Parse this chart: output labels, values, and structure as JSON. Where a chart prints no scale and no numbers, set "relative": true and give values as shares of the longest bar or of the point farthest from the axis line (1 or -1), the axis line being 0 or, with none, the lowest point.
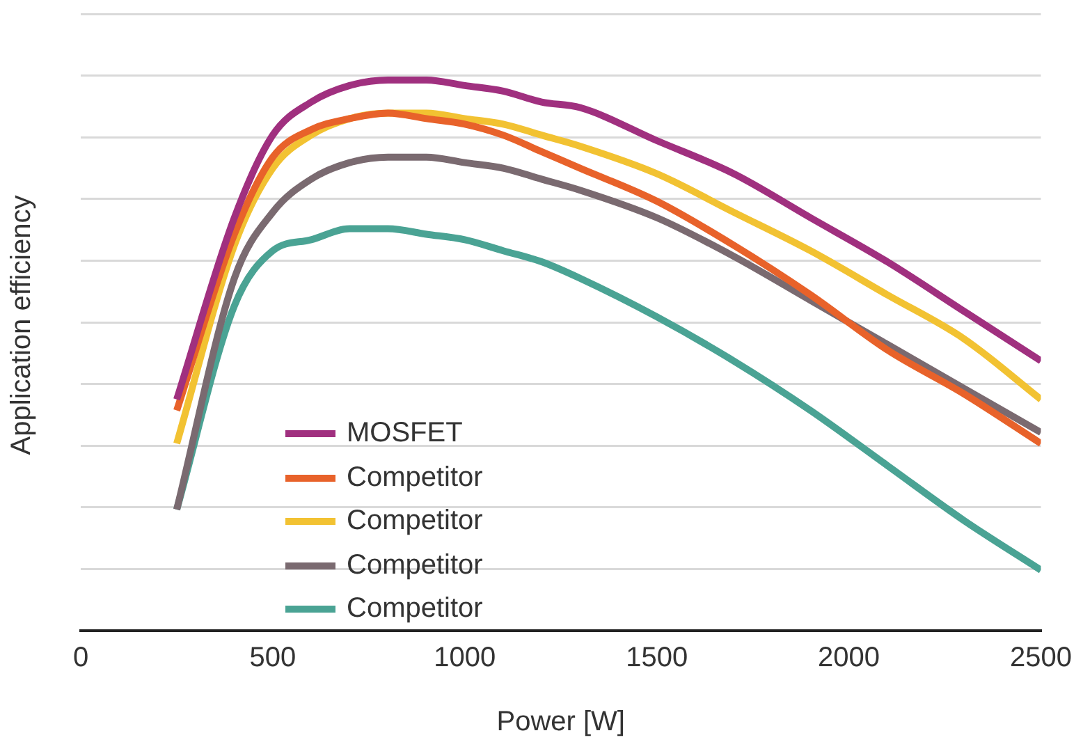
{
  "chart_data": {
    "type": "line",
    "xlabel": "Power [W]",
    "ylabel": "Application efficiency",
    "relative": true,
    "xlim": [
      0,
      2500
    ],
    "xticks": [
      0,
      500,
      1000,
      1500,
      2000,
      2500
    ],
    "x": [
      250,
      400,
      500,
      600,
      700,
      800,
      900,
      1000,
      1100,
      1200,
      1300,
      1500,
      1700,
      1900,
      2100,
      2300,
      2500
    ],
    "grid": "y",
    "legend": "bottom left",
    "marker": "none",
    "line_style": "solid",
    "series": [
      {
        "name": "MOSFET",
        "color": "#a0307f",
        "values": [
          0.42,
          0.75,
          0.9,
          0.96,
          0.99,
          1,
          1,
          0.99,
          0.98,
          0.96,
          0.95,
          0.89,
          0.83,
          0.75,
          0.67,
          0.58,
          0.49
        ]
      },
      {
        "name": "Competitor",
        "color": "#e8622a",
        "values": [
          0.4,
          0.72,
          0.86,
          0.91,
          0.93,
          0.94,
          0.93,
          0.92,
          0.9,
          0.87,
          0.84,
          0.78,
          0.7,
          0.61,
          0.51,
          0.43,
          0.34
        ]
      },
      {
        "name": "Competitor",
        "color": "#f2c232",
        "values": [
          0.34,
          0.7,
          0.84,
          0.9,
          0.93,
          0.94,
          0.94,
          0.93,
          0.92,
          0.9,
          0.88,
          0.83,
          0.76,
          0.69,
          0.61,
          0.53,
          0.42
        ]
      },
      {
        "name": "Competitor",
        "color": "#7a6a70",
        "values": [
          0.22,
          0.64,
          0.76,
          0.82,
          0.85,
          0.86,
          0.86,
          0.85,
          0.84,
          0.82,
          0.8,
          0.75,
          0.68,
          0.6,
          0.52,
          0.44,
          0.36
        ]
      },
      {
        "name": "Competitor",
        "color": "#4aa394",
        "values": [
          0.22,
          0.59,
          0.69,
          0.71,
          0.73,
          0.73,
          0.72,
          0.71,
          0.69,
          0.67,
          0.64,
          0.57,
          0.49,
          0.4,
          0.3,
          0.2,
          0.11
        ]
      }
    ]
  }
}
